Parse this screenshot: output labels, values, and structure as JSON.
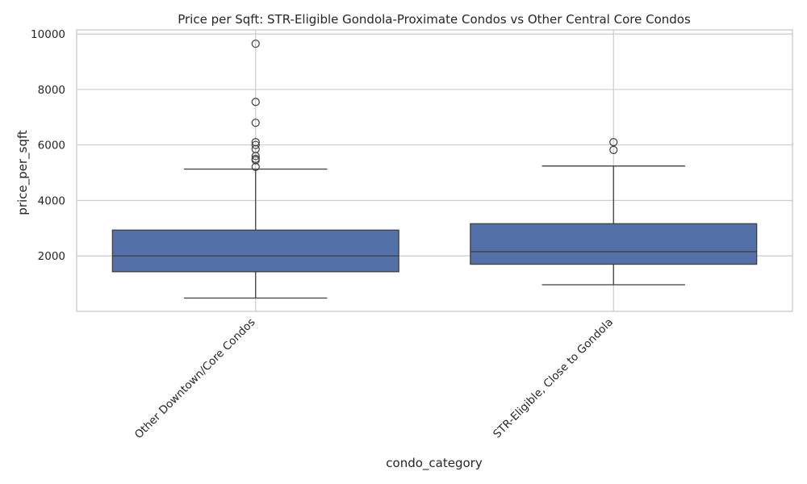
{
  "chart_data": {
    "type": "box",
    "title": "Price per Sqft: STR-Eligible Gondola-Proximate Condos vs Other Central Core Condos",
    "xlabel": "condo_category",
    "ylabel": "price_per_sqft",
    "ylim": [
      0,
      10150
    ],
    "yticks": [
      2000,
      4000,
      6000,
      8000,
      10000
    ],
    "grid": true,
    "box_color": "#5470a8",
    "categories": [
      "Other Downtown/Core Condos",
      "STR-Eligible, Close to Gondola"
    ],
    "boxes": [
      {
        "category": "Other Downtown/Core Condos",
        "whisker_low": 480,
        "q1": 1430,
        "median": 2000,
        "q3": 2930,
        "whisker_high": 5130,
        "outliers": [
          5210,
          5450,
          5500,
          5600,
          5850,
          6000,
          6100,
          6800,
          7550,
          9650
        ]
      },
      {
        "category": "STR-Eligible, Close to Gondola",
        "whisker_low": 960,
        "q1": 1700,
        "median": 2150,
        "q3": 3160,
        "whisker_high": 5240,
        "outliers": [
          5820,
          6100
        ]
      }
    ]
  }
}
